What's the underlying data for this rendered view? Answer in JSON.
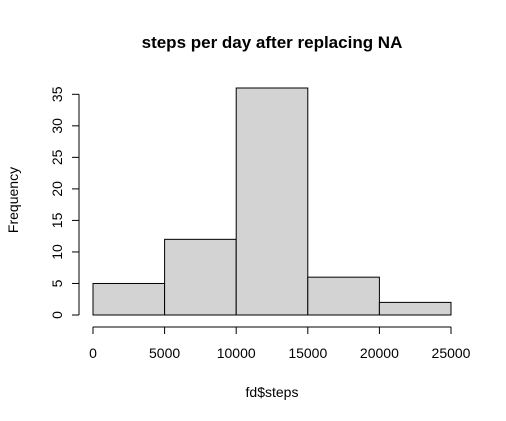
{
  "chart_data": {
    "type": "bar",
    "title": "steps per day after replacing NA",
    "xlabel": "fd$steps",
    "ylabel": "Frequency",
    "bins": [
      {
        "start": 0,
        "end": 5000,
        "value": 5
      },
      {
        "start": 5000,
        "end": 10000,
        "value": 12
      },
      {
        "start": 10000,
        "end": 15000,
        "value": 36
      },
      {
        "start": 15000,
        "end": 20000,
        "value": 6
      },
      {
        "start": 20000,
        "end": 25000,
        "value": 2
      }
    ],
    "xlim": [
      0,
      25000
    ],
    "ylim": [
      0,
      36
    ],
    "x_ticks": [
      0,
      5000,
      10000,
      15000,
      20000,
      25000
    ],
    "x_tick_labels": [
      "0",
      "5000",
      "10000",
      "15000",
      "20000",
      "25000"
    ],
    "y_ticks": [
      0,
      5,
      10,
      15,
      20,
      25,
      30,
      35
    ],
    "y_tick_labels": [
      "0",
      "5",
      "10",
      "15",
      "20",
      "25",
      "30",
      "35"
    ],
    "bar_color": "#d3d3d3",
    "border_color": "#000000",
    "grid": false,
    "legend": "none"
  }
}
